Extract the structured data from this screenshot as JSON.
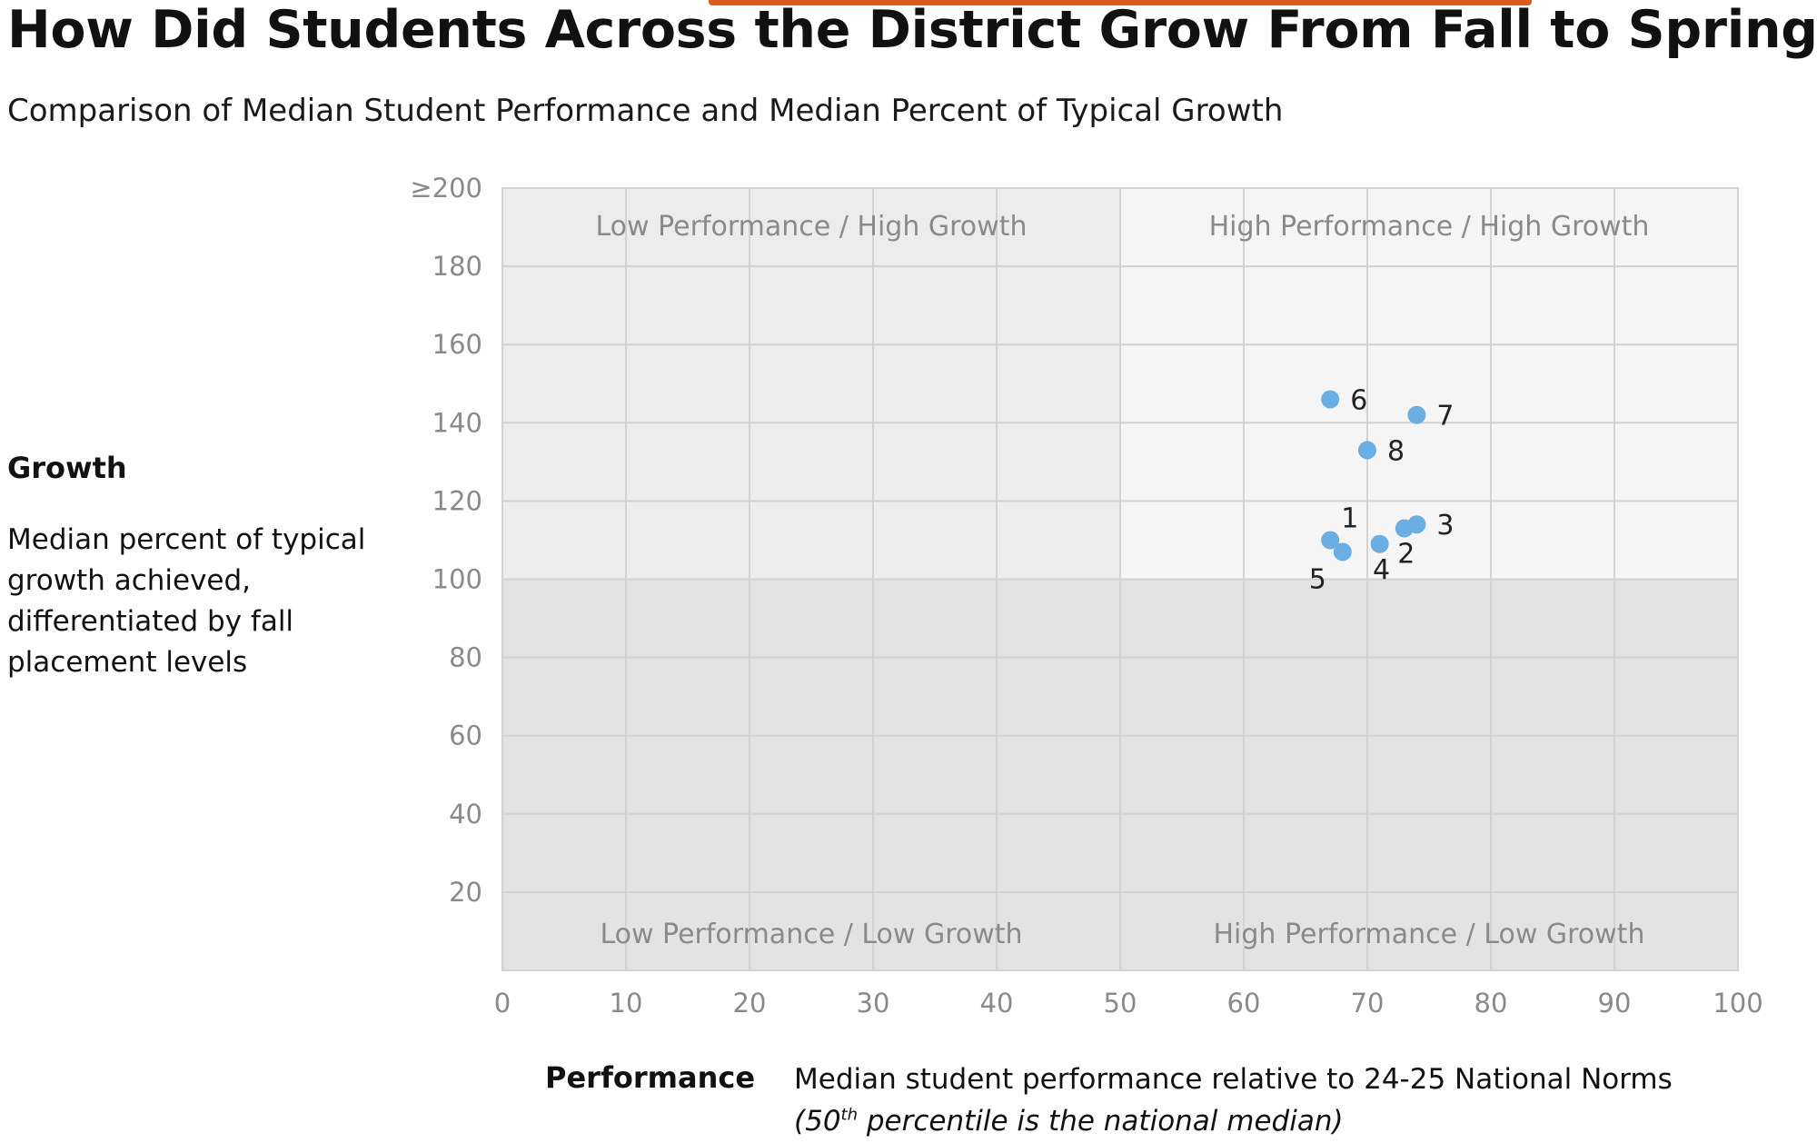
{
  "title": "How Did Students Across the District Grow From Fall to Spring?",
  "subtitle": "Comparison of Median Student Performance and Median Percent of Typical Growth",
  "y_axis_panel": {
    "heading": "Growth",
    "description": "Median percent of typical growth achieved, differentiated by fall placement levels"
  },
  "x_axis_panel": {
    "heading": "Performance",
    "description": "Median student performance relative to 24-25 National Norms",
    "note_prefix": "(50",
    "note_sup": "th",
    "note_suffix": " percentile is the national median)"
  },
  "colors": {
    "point": "#6aaee4",
    "top_left_quadrant": "#ececec",
    "top_right_quadrant": "#f5f5f5",
    "bottom_quadrants": "#e3e3e3",
    "gridline": "#d2d2d2",
    "quadrant_label": "#8a8a8a",
    "tick_label": "#8a8a8a",
    "accent": "#e05a1e"
  },
  "chart_data": {
    "type": "scatter",
    "xlim": [
      0,
      100
    ],
    "ylim": [
      0,
      200
    ],
    "x_ticks": [
      0,
      10,
      20,
      30,
      40,
      50,
      60,
      70,
      80,
      90,
      100
    ],
    "x_tick_labels": [
      "0",
      "10",
      "20",
      "30",
      "40",
      "50",
      "60",
      "70",
      "80",
      "90",
      "100"
    ],
    "y_ticks": [
      20,
      40,
      60,
      80,
      100,
      120,
      140,
      160,
      180,
      200
    ],
    "y_tick_labels": [
      "20",
      "40",
      "60",
      "80",
      "100",
      "120",
      "140",
      "160",
      "180",
      "≥200"
    ],
    "grid": true,
    "quadrant_split": {
      "x": 50,
      "y": 100
    },
    "quadrant_labels": {
      "top_left": "Low Performance / High Growth",
      "top_right": "High Performance / High Growth",
      "bottom_left": "Low Performance / Low Growth",
      "bottom_right": "High Performance / Low Growth"
    },
    "points": [
      {
        "label": "1",
        "x": 67,
        "y": 110,
        "label_pos": "above-right"
      },
      {
        "label": "2",
        "x": 73,
        "y": 113,
        "label_pos": "below"
      },
      {
        "label": "3",
        "x": 74,
        "y": 114,
        "label_pos": "right"
      },
      {
        "label": "4",
        "x": 71,
        "y": 109,
        "label_pos": "below"
      },
      {
        "label": "5",
        "x": 68,
        "y": 107,
        "label_pos": "below-left"
      },
      {
        "label": "6",
        "x": 67,
        "y": 146,
        "label_pos": "right"
      },
      {
        "label": "7",
        "x": 74,
        "y": 142,
        "label_pos": "right"
      },
      {
        "label": "8",
        "x": 70,
        "y": 133,
        "label_pos": "right"
      }
    ]
  }
}
